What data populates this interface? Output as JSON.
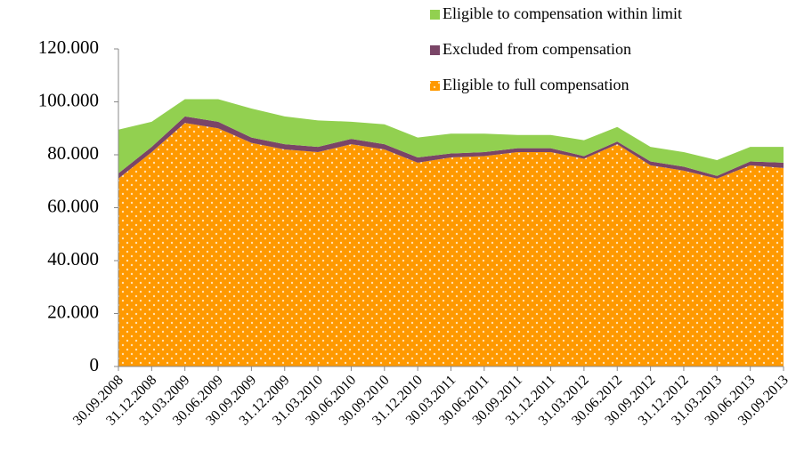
{
  "chart_data": {
    "type": "stacked-area",
    "categories": [
      "30.09.2008",
      "31.12.2008",
      "31.03.2009",
      "30.06.2009",
      "30.09.2009",
      "31.12.2009",
      "31.03.2010",
      "30.06.2010",
      "30.09.2010",
      "31.12.2010",
      "30.03.2011",
      "30.06.2011",
      "30.09.2011",
      "31.12.2011",
      "31.03.2012",
      "30.06.2012",
      "30.09.2012",
      "31.12.2012",
      "31.03.2013",
      "30.06.2013",
      "30.09.2013"
    ],
    "series": [
      {
        "name": "Eligible to full compensation",
        "color": "#ff9900",
        "values": [
          71000,
          81000,
          92000,
          90000,
          84500,
          82000,
          81000,
          84000,
          82000,
          77000,
          79000,
          79500,
          81000,
          81000,
          78500,
          84000,
          76000,
          74000,
          71000,
          76000,
          75000
        ]
      },
      {
        "name": "Excluded from compensation",
        "color": "#7a4567",
        "values": [
          2000,
          2000,
          2500,
          2500,
          2000,
          2000,
          2000,
          2000,
          2000,
          2000,
          1500,
          1500,
          1500,
          1500,
          1000,
          1000,
          1500,
          1500,
          1000,
          1500,
          2000
        ]
      },
      {
        "name": "Eligible to compensation within limit",
        "color": "#92d050",
        "values": [
          16500,
          9500,
          6500,
          8500,
          11000,
          10500,
          10000,
          6500,
          7500,
          7500,
          7500,
          7000,
          5000,
          5000,
          6000,
          5500,
          5500,
          5500,
          6000,
          5500,
          6000
        ]
      }
    ],
    "ylim": [
      0,
      120000
    ],
    "yticks": [
      0,
      {
        "value": 20000,
        "label": "20.000"
      },
      {
        "value": 40000,
        "label": "40.000"
      },
      {
        "value": 60000,
        "label": "60.000"
      },
      {
        "value": 80000,
        "label": "80.000"
      },
      {
        "value": 100000,
        "label": "100.000"
      },
      {
        "value": 120000,
        "label": "120.000"
      }
    ],
    "legend": "top-right",
    "grid": false
  }
}
